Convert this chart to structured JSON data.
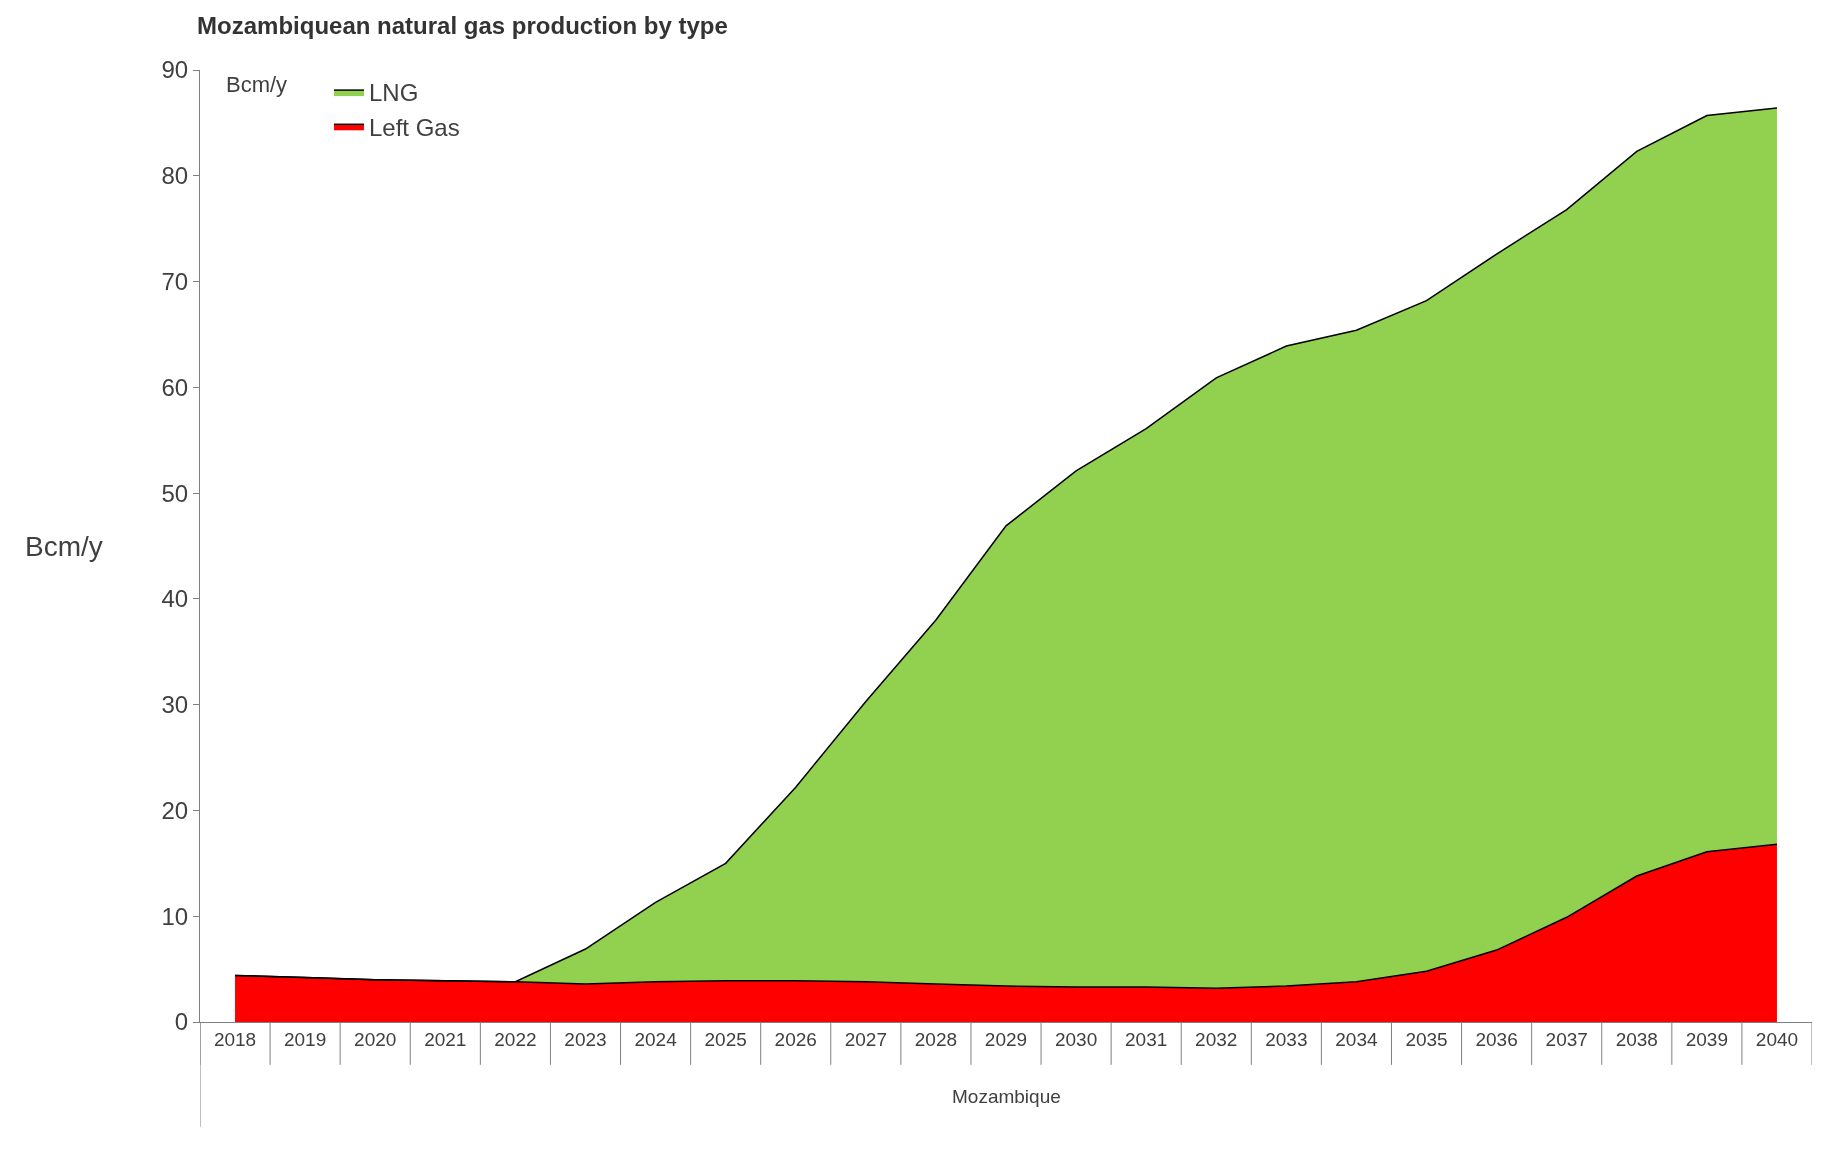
{
  "chart_data": {
    "type": "area",
    "stacked": true,
    "title": "Mozambiquean natural gas production by type",
    "subtitle": "Bcm/y",
    "ylabel": "Bcm/y",
    "xlabel": "Mozambique",
    "categories": [
      "2018",
      "2019",
      "2020",
      "2021",
      "2022",
      "2023",
      "2024",
      "2025",
      "2026",
      "2027",
      "2028",
      "2029",
      "2030",
      "2031",
      "2032",
      "2033",
      "2034",
      "2035",
      "2036",
      "2037",
      "2038",
      "2039",
      "2040"
    ],
    "series": [
      {
        "name": "Left Gas",
        "color": "#ff0000",
        "values": [
          4.4,
          4.2,
          4.0,
          3.9,
          3.8,
          3.6,
          3.8,
          3.9,
          3.9,
          3.8,
          3.6,
          3.4,
          3.3,
          3.3,
          3.2,
          3.4,
          3.8,
          4.8,
          6.8,
          9.9,
          13.8,
          16.1,
          16.8
        ]
      },
      {
        "name": "LNG",
        "color": "#92d050",
        "values": [
          0,
          0,
          0,
          0,
          0,
          3.3,
          7.5,
          11.1,
          18.3,
          26.5,
          34.4,
          43.5,
          48.8,
          52.8,
          57.7,
          60.5,
          61.6,
          63.4,
          65.8,
          66.9,
          68.5,
          69.6,
          69.6
        ]
      }
    ],
    "ylim": [
      0,
      90
    ],
    "yticks": [
      0,
      10,
      20,
      30,
      40,
      50,
      60,
      70,
      80,
      90
    ],
    "legend": "top left"
  }
}
